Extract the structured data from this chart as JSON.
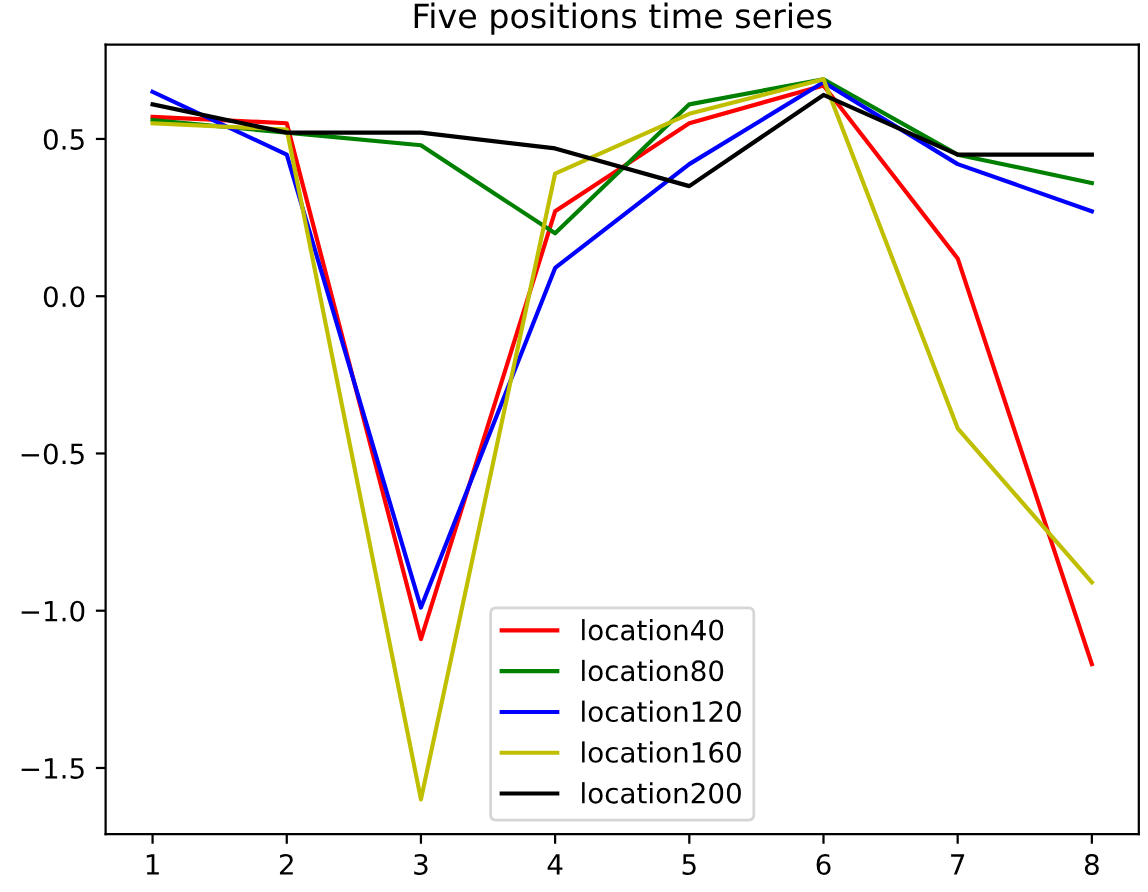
{
  "chart_data": {
    "type": "line",
    "title": "Five positions time series",
    "x": [
      1,
      2,
      3,
      4,
      5,
      6,
      7,
      8
    ],
    "series": [
      {
        "name": "location40",
        "color": "#ff0000",
        "values": [
          0.57,
          0.55,
          -1.09,
          0.27,
          0.55,
          0.67,
          0.12,
          -1.17
        ]
      },
      {
        "name": "location80",
        "color": "#008000",
        "values": [
          0.56,
          0.52,
          0.48,
          0.2,
          0.61,
          0.69,
          0.45,
          0.36
        ]
      },
      {
        "name": "location120",
        "color": "#0000ff",
        "values": [
          0.65,
          0.45,
          -0.99,
          0.09,
          0.42,
          0.68,
          0.42,
          0.27
        ]
      },
      {
        "name": "location160",
        "color": "#bfbf00",
        "values": [
          0.55,
          0.53,
          -1.6,
          0.39,
          0.58,
          0.69,
          -0.42,
          -0.91
        ]
      },
      {
        "name": "location200",
        "color": "#000000",
        "values": [
          0.61,
          0.52,
          0.52,
          0.47,
          0.35,
          0.64,
          0.45,
          0.45
        ]
      }
    ],
    "xlim": [
      0.65,
      8.35
    ],
    "ylim": [
      -1.71,
      0.8
    ],
    "xticks": [
      1,
      2,
      3,
      4,
      5,
      6,
      7,
      8
    ],
    "yticks": [
      {
        "value": -1.5,
        "label": "−1.5"
      },
      {
        "value": -1.0,
        "label": "−1.0"
      },
      {
        "value": -0.5,
        "label": "−0.5"
      },
      {
        "value": 0.0,
        "label": "0.0"
      },
      {
        "value": 0.5,
        "label": "0.5"
      }
    ],
    "legend": "bottom",
    "grid": false,
    "marker": "none",
    "line_style": "solid"
  }
}
